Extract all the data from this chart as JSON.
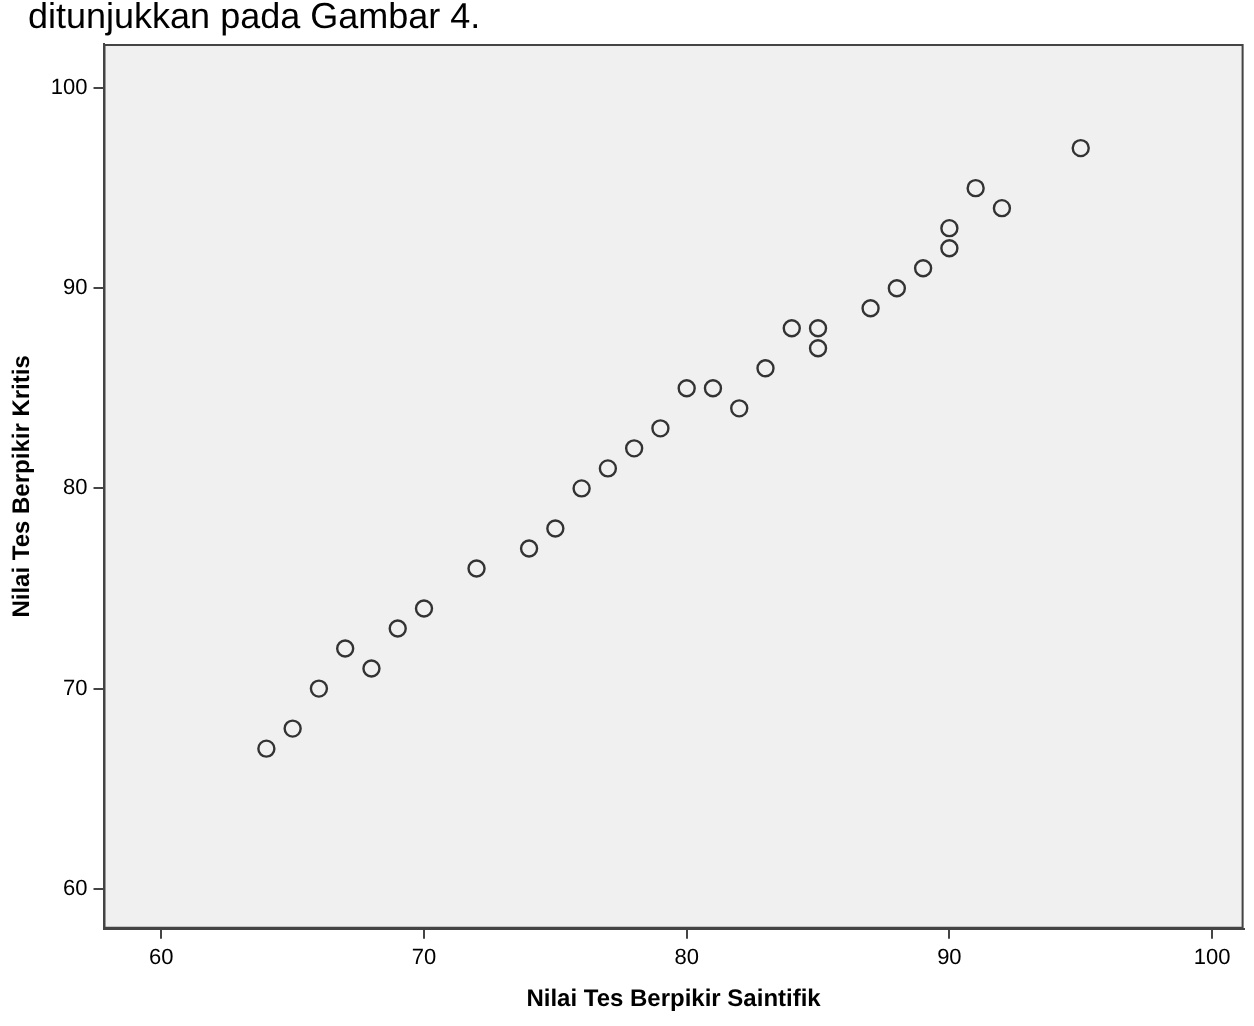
{
  "chart_data": {
    "type": "scatter",
    "xlabel": "Nilai Tes Berpikir Saintifik",
    "ylabel": "Nilai Tes Berpikir Kritis",
    "annotations": [
      "ditunjukkan pada Gambar 4."
    ],
    "x": [
      64,
      65,
      66,
      67,
      68,
      69,
      70,
      72,
      74,
      75,
      76,
      77,
      78,
      79,
      80,
      81,
      82,
      83,
      84,
      85,
      85,
      87,
      88,
      89,
      90,
      90,
      91,
      92,
      95
    ],
    "values": [
      67,
      68,
      70,
      72,
      71,
      73,
      74,
      76,
      77,
      78,
      80,
      81,
      82,
      83,
      85,
      85,
      84,
      86,
      88,
      88,
      87,
      89,
      90,
      91,
      92,
      93,
      95,
      94,
      97
    ],
    "color": "#333333",
    "marker": "circle",
    "xlim": [
      57.8,
      101.2
    ],
    "ylim": [
      58,
      102.2
    ],
    "xticks": [
      60,
      70,
      80,
      90,
      100
    ],
    "yticks": [
      60,
      70,
      80,
      90,
      100
    ],
    "grid": false,
    "legend": false
  }
}
